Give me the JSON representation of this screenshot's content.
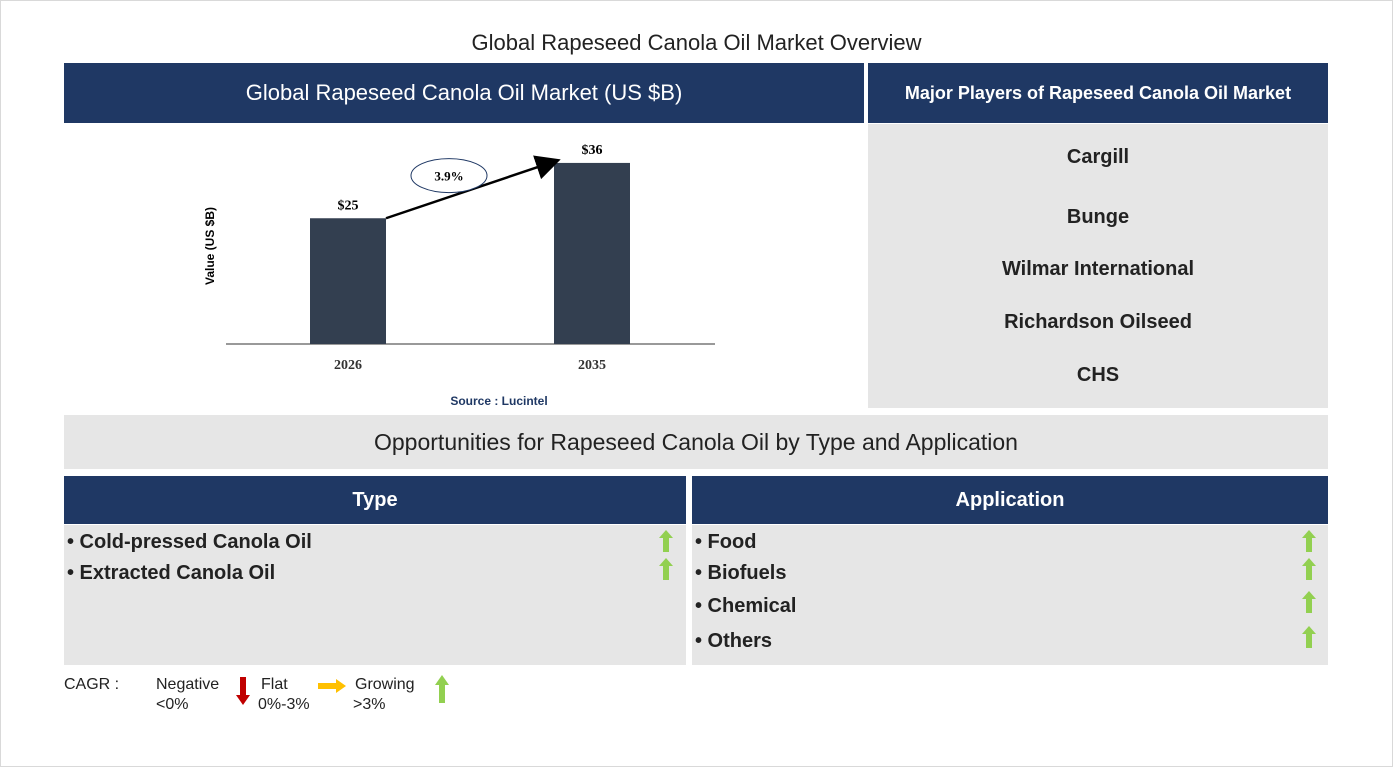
{
  "page_title": "Global Rapeseed Canola Oil Market Overview",
  "chart_header": "Global Rapeseed Canola Oil Market (US $B)",
  "players_header": "Major Players of Rapeseed Canola Oil Market",
  "players": [
    "Cargill",
    "Bunge",
    "Wilmar International",
    "Richardson Oilseed",
    "CHS"
  ],
  "chart_data": {
    "type": "bar",
    "categories": [
      "2026",
      "2035"
    ],
    "values": [
      25,
      36
    ],
    "value_labels": [
      "$25",
      "$36"
    ],
    "ylabel": "Value (US $B)",
    "cagr_label": "3.9%",
    "source": "Source : Lucintel",
    "bar_color": "#333f50"
  },
  "opportunities_title": "Opportunities for Rapeseed Canola Oil by Type and Application",
  "type_section": {
    "header": "Type",
    "items": [
      "• Cold-pressed Canola Oil",
      "• Extracted Canola Oil"
    ]
  },
  "application_section": {
    "header": "Application",
    "items": [
      "• Food",
      "• Biofuels",
      "• Chemical",
      "• Others"
    ]
  },
  "legend": {
    "cagr_label": "CAGR :",
    "negative_label": "Negative",
    "negative_range": "<0%",
    "flat_label": "Flat",
    "flat_range": "0%-3%",
    "growing_label": "Growing",
    "growing_range": ">3%"
  },
  "colors": {
    "navy": "#1f3864",
    "panel_grey": "#e6e6e6",
    "growing_green": "#92d050",
    "negative_red": "#c00000",
    "flat_orange": "#ffc000"
  },
  "icons": {
    "growing": "green-up-arrow-icon",
    "negative": "red-down-arrow-icon",
    "flat": "orange-right-arrow-icon"
  }
}
